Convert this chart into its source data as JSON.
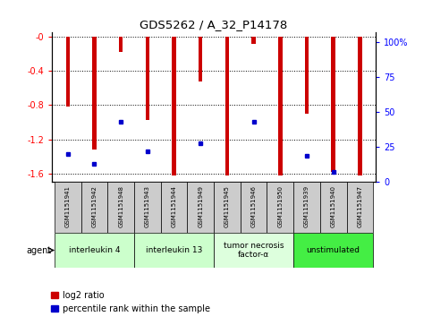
{
  "title": "GDS5262 / A_32_P14178",
  "samples": [
    "GSM1151941",
    "GSM1151942",
    "GSM1151948",
    "GSM1151943",
    "GSM1151944",
    "GSM1151949",
    "GSM1151945",
    "GSM1151946",
    "GSM1151950",
    "GSM1151939",
    "GSM1151940",
    "GSM1151947"
  ],
  "log2_ratio": [
    -0.82,
    -1.32,
    -0.18,
    -0.97,
    -1.62,
    -0.52,
    -1.62,
    -0.08,
    -1.62,
    -0.9,
    -1.58,
    -1.62
  ],
  "percentile_rank": [
    20,
    13,
    43,
    22,
    null,
    28,
    null,
    43,
    null,
    19,
    7,
    null
  ],
  "groups": [
    {
      "label": "interleukin 4",
      "start": 0,
      "end": 2,
      "color": "#ccffcc"
    },
    {
      "label": "interleukin 13",
      "start": 3,
      "end": 5,
      "color": "#ccffcc"
    },
    {
      "label": "tumor necrosis\nfactor-α",
      "start": 6,
      "end": 8,
      "color": "#ddffdd"
    },
    {
      "label": "unstimulated",
      "start": 9,
      "end": 11,
      "color": "#44ee44"
    }
  ],
  "ylim_left": [
    -1.7,
    0.05
  ],
  "ylim_right": [
    0,
    107
  ],
  "left_ticks": [
    0,
    -0.4,
    -0.8,
    -1.2,
    -1.6
  ],
  "left_ticklabels": [
    "-0",
    "-0.4",
    "-0.8",
    "-1.2",
    "-1.6"
  ],
  "right_ticks": [
    0,
    25,
    50,
    75,
    100
  ],
  "right_ticklabels": [
    "0",
    "25",
    "50",
    "75",
    "100%"
  ],
  "bar_color_red": "#cc0000",
  "dot_color_blue": "#0000cc",
  "sample_box_color": "#cccccc",
  "bar_width": 0.15
}
